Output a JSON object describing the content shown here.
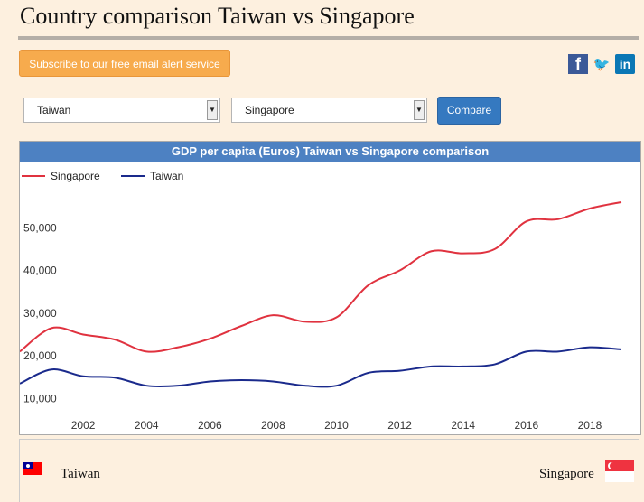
{
  "page": {
    "title": "Country comparison Taiwan vs Singapore",
    "subscribe_label": "Subscribe to our free email alert service"
  },
  "share": {
    "facebook": "f",
    "twitter": "🐦",
    "linkedin": "in"
  },
  "selectors": {
    "country1": "Taiwan",
    "country2": "Singapore",
    "compare_label": "Compare"
  },
  "colors": {
    "singapore": "#e0323f",
    "taiwan": "#1a2a8c",
    "header": "#4d81c2"
  },
  "chart_data": {
    "type": "line",
    "title": "GDP per capita (Euros) Taiwan vs Singapore comparison",
    "x": [
      2000,
      2001,
      2002,
      2003,
      2004,
      2005,
      2006,
      2007,
      2008,
      2009,
      2010,
      2011,
      2012,
      2013,
      2014,
      2015,
      2016,
      2017,
      2018,
      2019
    ],
    "series": [
      {
        "name": "Singapore",
        "values": [
          21000,
          26500,
          25000,
          23800,
          21000,
          22000,
          24000,
          27000,
          29500,
          28000,
          29000,
          36500,
          40000,
          44500,
          44000,
          45000,
          51500,
          52000,
          54500,
          56000
        ]
      },
      {
        "name": "Taiwan",
        "values": [
          13500,
          16800,
          15200,
          14900,
          13000,
          13000,
          14000,
          14300,
          14000,
          13000,
          13000,
          16000,
          16500,
          17500,
          17500,
          18000,
          21000,
          21000,
          22000,
          21500
        ]
      }
    ],
    "y_ticks": [
      "10,000",
      "20,000",
      "30,000",
      "40,000",
      "50,000"
    ],
    "x_ticks": [
      "2002",
      "2004",
      "2006",
      "2008",
      "2010",
      "2012",
      "2014",
      "2016",
      "2018"
    ],
    "ylim": [
      5000,
      60000
    ],
    "xlim": [
      2000,
      2019.6
    ]
  },
  "flags": {
    "left": "Taiwan",
    "right": "Singapore"
  }
}
